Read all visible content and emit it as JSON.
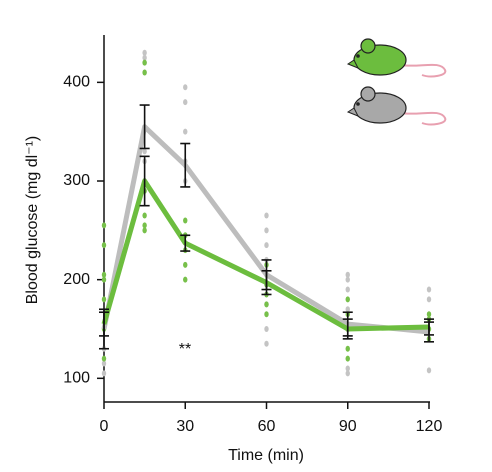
{
  "chart_data": {
    "type": "line",
    "y_label": "Blood glucose (mg dl⁻¹)",
    "x_label": "Time (min)",
    "annotation": "**",
    "x": [
      0,
      15,
      30,
      60,
      90,
      120
    ],
    "xlim": [
      0,
      120
    ],
    "xticks": [
      0,
      30,
      60,
      90,
      120
    ],
    "ylim": [
      76,
      448
    ],
    "yticks": [
      100,
      200,
      300,
      400
    ],
    "series": [
      {
        "color": "#bdbdbd",
        "dot_color": "#c4c4c4",
        "values": [
          150,
          355,
          316,
          205,
          155,
          147
        ],
        "errors": [
          20,
          22,
          22,
          15,
          12,
          10
        ],
        "points": [
          [
            130,
            115,
            105
          ],
          [
            430,
            425,
            420,
            410,
            330,
            320
          ],
          [
            395,
            380,
            350,
            320,
            300
          ],
          [
            265,
            250,
            235,
            220,
            175,
            150,
            135
          ],
          [
            205,
            200,
            190,
            170,
            150,
            110,
            105
          ],
          [
            190,
            180,
            140,
            108
          ]
        ]
      },
      {
        "color": "#6cbd3e",
        "dot_color": "#77c04a",
        "values": [
          155,
          300,
          237,
          197,
          150,
          152
        ],
        "errors": [
          12,
          25,
          8,
          12,
          10,
          8
        ],
        "points": [
          [
            255,
            235,
            205,
            200,
            180,
            150,
            120
          ],
          [
            420,
            410,
            300,
            290,
            265,
            255,
            250
          ],
          [
            260,
            245,
            230,
            215,
            200
          ],
          [
            215,
            205,
            195,
            185,
            175,
            165
          ],
          [
            180,
            165,
            150,
            130,
            120
          ],
          [
            165,
            160,
            150,
            140
          ]
        ]
      }
    ]
  }
}
